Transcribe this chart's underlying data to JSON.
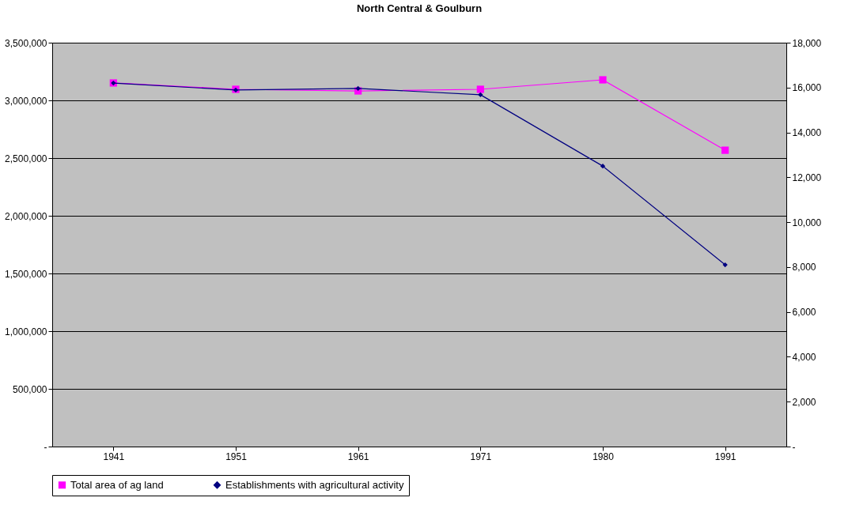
{
  "chart_data": {
    "type": "line",
    "title": "North Central & Goulburn",
    "categories": [
      "1941",
      "1951",
      "1961",
      "1971",
      "1980",
      "1991"
    ],
    "series": [
      {
        "name": "Total area of ag land",
        "color": "#ff00ff",
        "marker": "square",
        "values": [
          3151000,
          3096000,
          3082000,
          3096000,
          3178000,
          2568000
        ]
      },
      {
        "name": "Establishments with agricultural activity",
        "color": "#000080",
        "marker": "diamond",
        "axis": "y2",
        "values": [
          16200,
          15890,
          15960,
          15680,
          12500,
          8100
        ]
      }
    ],
    "ylim": [
      0,
      3500000
    ],
    "yticks": [
      {
        "value": 0,
        "label": "-"
      },
      {
        "value": 500000,
        "label": "500,000"
      },
      {
        "value": 1000000,
        "label": "1,000,000"
      },
      {
        "value": 1500000,
        "label": "1,500,000"
      },
      {
        "value": 2000000,
        "label": "2,000,000"
      },
      {
        "value": 2500000,
        "label": "2,500,000"
      },
      {
        "value": 3000000,
        "label": "3,000,000"
      },
      {
        "value": 3500000,
        "label": "3,500,000"
      }
    ],
    "y2lim": [
      0,
      18000
    ],
    "y2ticks": [
      {
        "value": 0,
        "label": "-"
      },
      {
        "value": 2000,
        "label": "2,000"
      },
      {
        "value": 4000,
        "label": "4,000"
      },
      {
        "value": 6000,
        "label": "6,000"
      },
      {
        "value": 8000,
        "label": "8,000"
      },
      {
        "value": 10000,
        "label": "10,000"
      },
      {
        "value": 12000,
        "label": "12,000"
      },
      {
        "value": 14000,
        "label": "14,000"
      },
      {
        "value": 16000,
        "label": "16,000"
      },
      {
        "value": 18000,
        "label": "18,000"
      }
    ],
    "grid": "y",
    "legend": "bottom",
    "line_style": "solid"
  }
}
